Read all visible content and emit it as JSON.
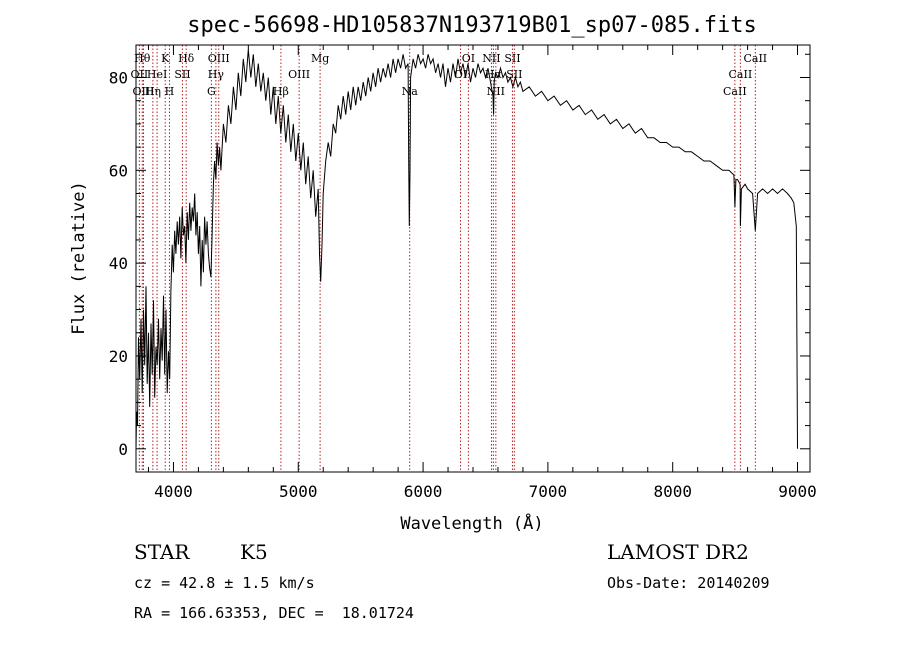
{
  "chart_data": {
    "type": "line",
    "title": "spec-56698-HD105837N193719B01_sp07-085.fits",
    "xlabel": "Wavelength (Å)",
    "ylabel": "Flux (relative)",
    "xlim": [
      3700,
      9100
    ],
    "ylim": [
      -5,
      87
    ],
    "xticks": [
      4000,
      5000,
      6000,
      7000,
      8000,
      9000
    ],
    "yticks": [
      0,
      20,
      40,
      60,
      80
    ],
    "grid": false,
    "series": [
      {
        "color": "#000000",
        "points": [
          [
            3700,
            0
          ],
          [
            3705,
            8
          ],
          [
            3712,
            5
          ],
          [
            3720,
            24
          ],
          [
            3730,
            15
          ],
          [
            3740,
            28
          ],
          [
            3750,
            12
          ],
          [
            3760,
            30
          ],
          [
            3770,
            18
          ],
          [
            3780,
            35
          ],
          [
            3790,
            14
          ],
          [
            3800,
            25
          ],
          [
            3810,
            9
          ],
          [
            3820,
            27
          ],
          [
            3830,
            16
          ],
          [
            3840,
            32
          ],
          [
            3850,
            11
          ],
          [
            3860,
            22
          ],
          [
            3870,
            18
          ],
          [
            3880,
            28
          ],
          [
            3890,
            15
          ],
          [
            3900,
            26
          ],
          [
            3910,
            19
          ],
          [
            3920,
            33
          ],
          [
            3930,
            16
          ],
          [
            3940,
            30
          ],
          [
            3950,
            12
          ],
          [
            3960,
            21
          ],
          [
            3970,
            15
          ],
          [
            3980,
            34
          ],
          [
            3990,
            44
          ],
          [
            4000,
            38
          ],
          [
            4010,
            47
          ],
          [
            4020,
            42
          ],
          [
            4030,
            49
          ],
          [
            4040,
            44
          ],
          [
            4050,
            50
          ],
          [
            4060,
            41
          ],
          [
            4070,
            52
          ],
          [
            4080,
            46
          ],
          [
            4090,
            48
          ],
          [
            4100,
            40
          ],
          [
            4110,
            51
          ],
          [
            4120,
            45
          ],
          [
            4130,
            53
          ],
          [
            4140,
            47
          ],
          [
            4150,
            52
          ],
          [
            4160,
            49
          ],
          [
            4170,
            55
          ],
          [
            4180,
            46
          ],
          [
            4190,
            51
          ],
          [
            4200,
            42
          ],
          [
            4210,
            48
          ],
          [
            4220,
            35
          ],
          [
            4230,
            45
          ],
          [
            4240,
            38
          ],
          [
            4250,
            50
          ],
          [
            4260,
            44
          ],
          [
            4270,
            49
          ],
          [
            4280,
            42
          ],
          [
            4290,
            39
          ],
          [
            4300,
            37
          ],
          [
            4310,
            46
          ],
          [
            4320,
            57
          ],
          [
            4330,
            62
          ],
          [
            4340,
            58
          ],
          [
            4350,
            66
          ],
          [
            4360,
            61
          ],
          [
            4370,
            65
          ],
          [
            4380,
            60
          ],
          [
            4400,
            70
          ],
          [
            4420,
            66
          ],
          [
            4440,
            74
          ],
          [
            4460,
            70
          ],
          [
            4480,
            78
          ],
          [
            4500,
            73
          ],
          [
            4520,
            81
          ],
          [
            4540,
            76
          ],
          [
            4560,
            84
          ],
          [
            4580,
            79
          ],
          [
            4600,
            86
          ],
          [
            4620,
            80
          ],
          [
            4640,
            85
          ],
          [
            4660,
            78
          ],
          [
            4680,
            83
          ],
          [
            4700,
            77
          ],
          [
            4720,
            81
          ],
          [
            4740,
            75
          ],
          [
            4760,
            80
          ],
          [
            4780,
            72
          ],
          [
            4800,
            78
          ],
          [
            4820,
            70
          ],
          [
            4840,
            76
          ],
          [
            4860,
            68
          ],
          [
            4880,
            74
          ],
          [
            4900,
            66
          ],
          [
            4920,
            72
          ],
          [
            4940,
            64
          ],
          [
            4960,
            70
          ],
          [
            4980,
            62
          ],
          [
            5000,
            68
          ],
          [
            5020,
            60
          ],
          [
            5040,
            66
          ],
          [
            5060,
            57
          ],
          [
            5080,
            63
          ],
          [
            5100,
            54
          ],
          [
            5120,
            60
          ],
          [
            5140,
            50
          ],
          [
            5160,
            56
          ],
          [
            5170,
            42
          ],
          [
            5180,
            36
          ],
          [
            5190,
            44
          ],
          [
            5200,
            55
          ],
          [
            5220,
            62
          ],
          [
            5240,
            66
          ],
          [
            5260,
            63
          ],
          [
            5280,
            70
          ],
          [
            5300,
            68
          ],
          [
            5320,
            74
          ],
          [
            5340,
            71
          ],
          [
            5360,
            76
          ],
          [
            5380,
            72
          ],
          [
            5400,
            77
          ],
          [
            5420,
            73
          ],
          [
            5440,
            78
          ],
          [
            5460,
            74
          ],
          [
            5480,
            78
          ],
          [
            5500,
            75
          ],
          [
            5520,
            79
          ],
          [
            5540,
            76
          ],
          [
            5560,
            80
          ],
          [
            5580,
            77
          ],
          [
            5600,
            81
          ],
          [
            5620,
            78
          ],
          [
            5640,
            82
          ],
          [
            5660,
            79
          ],
          [
            5680,
            82
          ],
          [
            5700,
            80
          ],
          [
            5720,
            83
          ],
          [
            5740,
            80
          ],
          [
            5760,
            84
          ],
          [
            5780,
            81
          ],
          [
            5800,
            84
          ],
          [
            5820,
            82
          ],
          [
            5840,
            85
          ],
          [
            5860,
            82
          ],
          [
            5880,
            83
          ],
          [
            5885,
            62
          ],
          [
            5890,
            48
          ],
          [
            5895,
            60
          ],
          [
            5900,
            80
          ],
          [
            5920,
            84
          ],
          [
            5940,
            82
          ],
          [
            5960,
            85
          ],
          [
            5980,
            83
          ],
          [
            6000,
            84
          ],
          [
            6020,
            82
          ],
          [
            6040,
            85
          ],
          [
            6060,
            83
          ],
          [
            6080,
            84
          ],
          [
            6100,
            81
          ],
          [
            6120,
            83
          ],
          [
            6140,
            80
          ],
          [
            6160,
            83
          ],
          [
            6180,
            78
          ],
          [
            6200,
            82
          ],
          [
            6220,
            79
          ],
          [
            6240,
            83
          ],
          [
            6260,
            80
          ],
          [
            6280,
            84
          ],
          [
            6300,
            81
          ],
          [
            6320,
            83
          ],
          [
            6340,
            80
          ],
          [
            6360,
            83
          ],
          [
            6380,
            79
          ],
          [
            6400,
            82
          ],
          [
            6420,
            80
          ],
          [
            6440,
            83
          ],
          [
            6460,
            81
          ],
          [
            6480,
            82
          ],
          [
            6500,
            80
          ],
          [
            6520,
            82
          ],
          [
            6540,
            79
          ],
          [
            6560,
            76
          ],
          [
            6565,
            72
          ],
          [
            6570,
            79
          ],
          [
            6580,
            81
          ],
          [
            6600,
            80
          ],
          [
            6620,
            82
          ],
          [
            6640,
            80
          ],
          [
            6660,
            81
          ],
          [
            6680,
            79
          ],
          [
            6700,
            80
          ],
          [
            6720,
            78
          ],
          [
            6740,
            80
          ],
          [
            6760,
            78
          ],
          [
            6780,
            79
          ],
          [
            6800,
            77
          ],
          [
            6850,
            78
          ],
          [
            6900,
            76
          ],
          [
            6950,
            77
          ],
          [
            7000,
            75
          ],
          [
            7050,
            76
          ],
          [
            7100,
            74
          ],
          [
            7150,
            75
          ],
          [
            7200,
            73
          ],
          [
            7250,
            74
          ],
          [
            7300,
            72
          ],
          [
            7350,
            73
          ],
          [
            7400,
            71
          ],
          [
            7450,
            72
          ],
          [
            7500,
            70
          ],
          [
            7550,
            71
          ],
          [
            7600,
            69
          ],
          [
            7650,
            70
          ],
          [
            7700,
            68
          ],
          [
            7750,
            69
          ],
          [
            7800,
            67
          ],
          [
            7850,
            67
          ],
          [
            7900,
            66
          ],
          [
            7950,
            66
          ],
          [
            8000,
            65
          ],
          [
            8050,
            65
          ],
          [
            8100,
            64
          ],
          [
            8150,
            64
          ],
          [
            8200,
            63
          ],
          [
            8250,
            62
          ],
          [
            8300,
            62
          ],
          [
            8350,
            61
          ],
          [
            8400,
            60
          ],
          [
            8450,
            60
          ],
          [
            8490,
            59
          ],
          [
            8498,
            52
          ],
          [
            8506,
            58
          ],
          [
            8520,
            58
          ],
          [
            8540,
            57
          ],
          [
            8542,
            48
          ],
          [
            8550,
            56
          ],
          [
            8580,
            57
          ],
          [
            8600,
            56
          ],
          [
            8640,
            55
          ],
          [
            8662,
            47
          ],
          [
            8680,
            55
          ],
          [
            8720,
            56
          ],
          [
            8760,
            55
          ],
          [
            8800,
            56
          ],
          [
            8840,
            55
          ],
          [
            8880,
            56
          ],
          [
            8920,
            55
          ],
          [
            8950,
            54
          ],
          [
            8970,
            53
          ],
          [
            8990,
            48
          ],
          [
            8995,
            24
          ],
          [
            9000,
            0
          ]
        ]
      }
    ],
    "line_markers": [
      {
        "wavelength": 3727,
        "label": "OII",
        "row": 1
      },
      {
        "wavelength": 3750,
        "label": "Hθ",
        "row": 0
      },
      {
        "wavelength": 3760,
        "label": "OIII",
        "row": 2
      },
      {
        "wavelength": 3835,
        "label": "Hη",
        "row": 2
      },
      {
        "wavelength": 3869,
        "label": "HeI",
        "row": 1
      },
      {
        "wavelength": 3934,
        "label": "K",
        "row": 0
      },
      {
        "wavelength": 3968,
        "label": "H",
        "row": 2
      },
      {
        "wavelength": 4072,
        "label": "SII",
        "row": 1
      },
      {
        "wavelength": 4102,
        "label": "Hδ",
        "row": 0
      },
      {
        "wavelength": 4304,
        "label": "G",
        "row": 2
      },
      {
        "wavelength": 4340,
        "label": "Hγ",
        "row": 1
      },
      {
        "wavelength": 4363,
        "label": "OIII",
        "row": 0
      },
      {
        "wavelength": 4861,
        "label": "Hβ",
        "row": 2
      },
      {
        "wavelength": 5007,
        "label": "OIII",
        "row": 1
      },
      {
        "wavelength": 5175,
        "label": "Mg",
        "row": 0
      },
      {
        "wavelength": 5893,
        "label": "Na",
        "row": 2
      },
      {
        "wavelength": 6300,
        "label": "OI",
        "row": 1
      },
      {
        "wavelength": 6363,
        "label": "OI",
        "row": 0
      },
      {
        "wavelength": 6548,
        "label": "NII",
        "row": 0
      },
      {
        "wavelength": 6563,
        "label": "Hα",
        "row": 1
      },
      {
        "wavelength": 6583,
        "label": "NII",
        "row": 2
      },
      {
        "wavelength": 6716,
        "label": "SII",
        "row": 0
      },
      {
        "wavelength": 6731,
        "label": "SII",
        "row": 1
      },
      {
        "wavelength": 8498,
        "label": "CaII",
        "row": 2
      },
      {
        "wavelength": 8542,
        "label": "CaII",
        "row": 1
      },
      {
        "wavelength": 8662,
        "label": "CaII",
        "row": 0
      }
    ],
    "marker_color": "#b22222"
  },
  "footer": {
    "object_class": "STAR",
    "subclass": "K5",
    "survey": "LAMOST DR2",
    "redshift": "cz = 42.8 ± 1.5 km/s",
    "obs_date": "Obs-Date: 20140209",
    "coords": "RA = 166.63353, DEC =  18.01724"
  }
}
